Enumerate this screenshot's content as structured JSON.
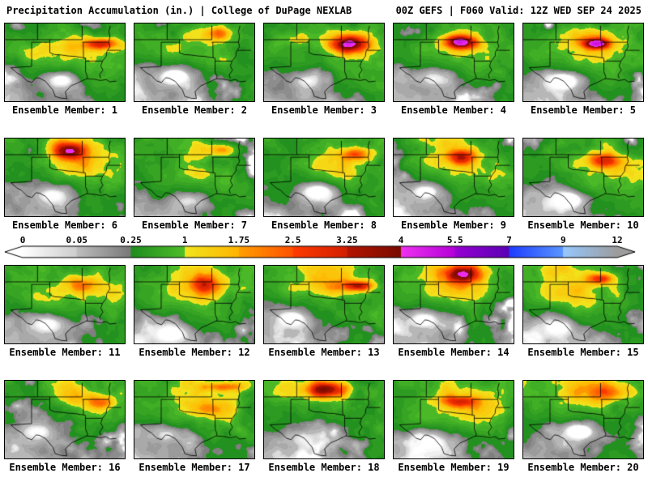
{
  "header": {
    "left": "Precipitation Accumulation (in.) | College of DuPage NEXLAB",
    "right": "00Z GEFS | F060 Valid: 12Z WED SEP 24 2025"
  },
  "panels": {
    "caption_prefix": "Ensemble Member:",
    "members": [
      1,
      2,
      3,
      4,
      5,
      6,
      7,
      8,
      9,
      10,
      11,
      12,
      13,
      14,
      15,
      16,
      17,
      18,
      19,
      20
    ]
  },
  "colorbar": {
    "labels": [
      "0",
      "0.05",
      "0.25",
      "1",
      "1.75",
      "2.5",
      "3.25",
      "4",
      "5.5",
      "7",
      "9",
      "12"
    ],
    "breakpoints": [
      0,
      0.05,
      0.25,
      1,
      1.75,
      2.5,
      3.25,
      4,
      5.5,
      7,
      9,
      12
    ],
    "segment_colors": [
      [
        "#ffffff",
        "#cdcdcd"
      ],
      [
        "#bebebe",
        "#787878"
      ],
      [
        "#1e8c1e",
        "#50be28"
      ],
      [
        "#f0e61e",
        "#ffb400"
      ],
      [
        "#ffa000",
        "#ff5000"
      ],
      [
        "#ff3c00",
        "#d21e00"
      ],
      [
        "#b41400",
        "#780a00"
      ],
      [
        "#f032f0",
        "#b400d8"
      ],
      [
        "#9600d2",
        "#5a00b4"
      ],
      [
        "#1e3cff",
        "#5a96ff"
      ],
      [
        "#96c8ff",
        "#9c9c9c"
      ]
    ]
  },
  "map": {
    "line_color": "#000000",
    "outlines": [
      [
        [
          0.223,
          0.241
        ],
        [
          0.375,
          0.241
        ],
        [
          0.375,
          0.375
        ],
        [
          0.415,
          0.4
        ],
        [
          0.47,
          0.405
        ],
        [
          0.53,
          0.418
        ],
        [
          0.585,
          0.423
        ],
        [
          0.672,
          0.445
        ],
        [
          0.673,
          0.621
        ],
        [
          0.69,
          0.69
        ],
        [
          0.682,
          0.71
        ],
        [
          0.61,
          0.763
        ],
        [
          0.555,
          0.8
        ],
        [
          0.505,
          0.876
        ],
        [
          0.517,
          0.966
        ],
        [
          0.47,
          0.961
        ],
        [
          0.42,
          0.938
        ],
        [
          0.4,
          0.855
        ],
        [
          0.34,
          0.745
        ],
        [
          0.29,
          0.703
        ],
        [
          0.26,
          0.697
        ],
        [
          0.225,
          0.759
        ],
        [
          0.185,
          0.738
        ],
        [
          0.14,
          0.669
        ],
        [
          0.1,
          0.634
        ],
        [
          0.05,
          0.569
        ],
        [
          0.223,
          0.552
        ],
        [
          0.223,
          0.241
        ]
      ],
      [
        [
          0.0,
          0.208
        ],
        [
          0.645,
          0.208
        ]
      ],
      [
        [
          0.375,
          0.241
        ],
        [
          0.375,
          0.208
        ]
      ],
      [
        [
          0.645,
          0.208
        ],
        [
          0.645,
          0.03
        ]
      ],
      [
        [
          0.2725,
          0.208
        ],
        [
          0.2725,
          0.0
        ]
      ],
      [
        [
          0.645,
          0.241
        ],
        [
          0.868,
          0.241
        ]
      ],
      [
        [
          0.654,
          0.241
        ],
        [
          0.656,
          0.44
        ]
      ],
      [
        [
          0.673,
          0.483
        ],
        [
          0.815,
          0.483
        ]
      ],
      [
        [
          0.88,
          0.03
        ],
        [
          0.868,
          0.1
        ],
        [
          0.876,
          0.17
        ],
        [
          0.868,
          0.241
        ]
      ],
      [
        [
          0.868,
          0.241
        ],
        [
          0.876,
          0.3
        ],
        [
          0.85,
          0.36
        ],
        [
          0.846,
          0.42
        ],
        [
          0.815,
          0.483
        ]
      ],
      [
        [
          0.815,
          0.483
        ],
        [
          0.8,
          0.545
        ],
        [
          0.818,
          0.6
        ],
        [
          0.79,
          0.66
        ],
        [
          0.8,
          0.705
        ]
      ],
      [
        [
          0.682,
          0.71
        ],
        [
          0.74,
          0.716
        ],
        [
          0.8,
          0.733
        ],
        [
          0.845,
          0.72
        ],
        [
          0.875,
          0.75
        ],
        [
          0.93,
          0.742
        ]
      ],
      [
        [
          0.86,
          0.345
        ],
        [
          0.97,
          0.345
        ]
      ]
    ]
  }
}
